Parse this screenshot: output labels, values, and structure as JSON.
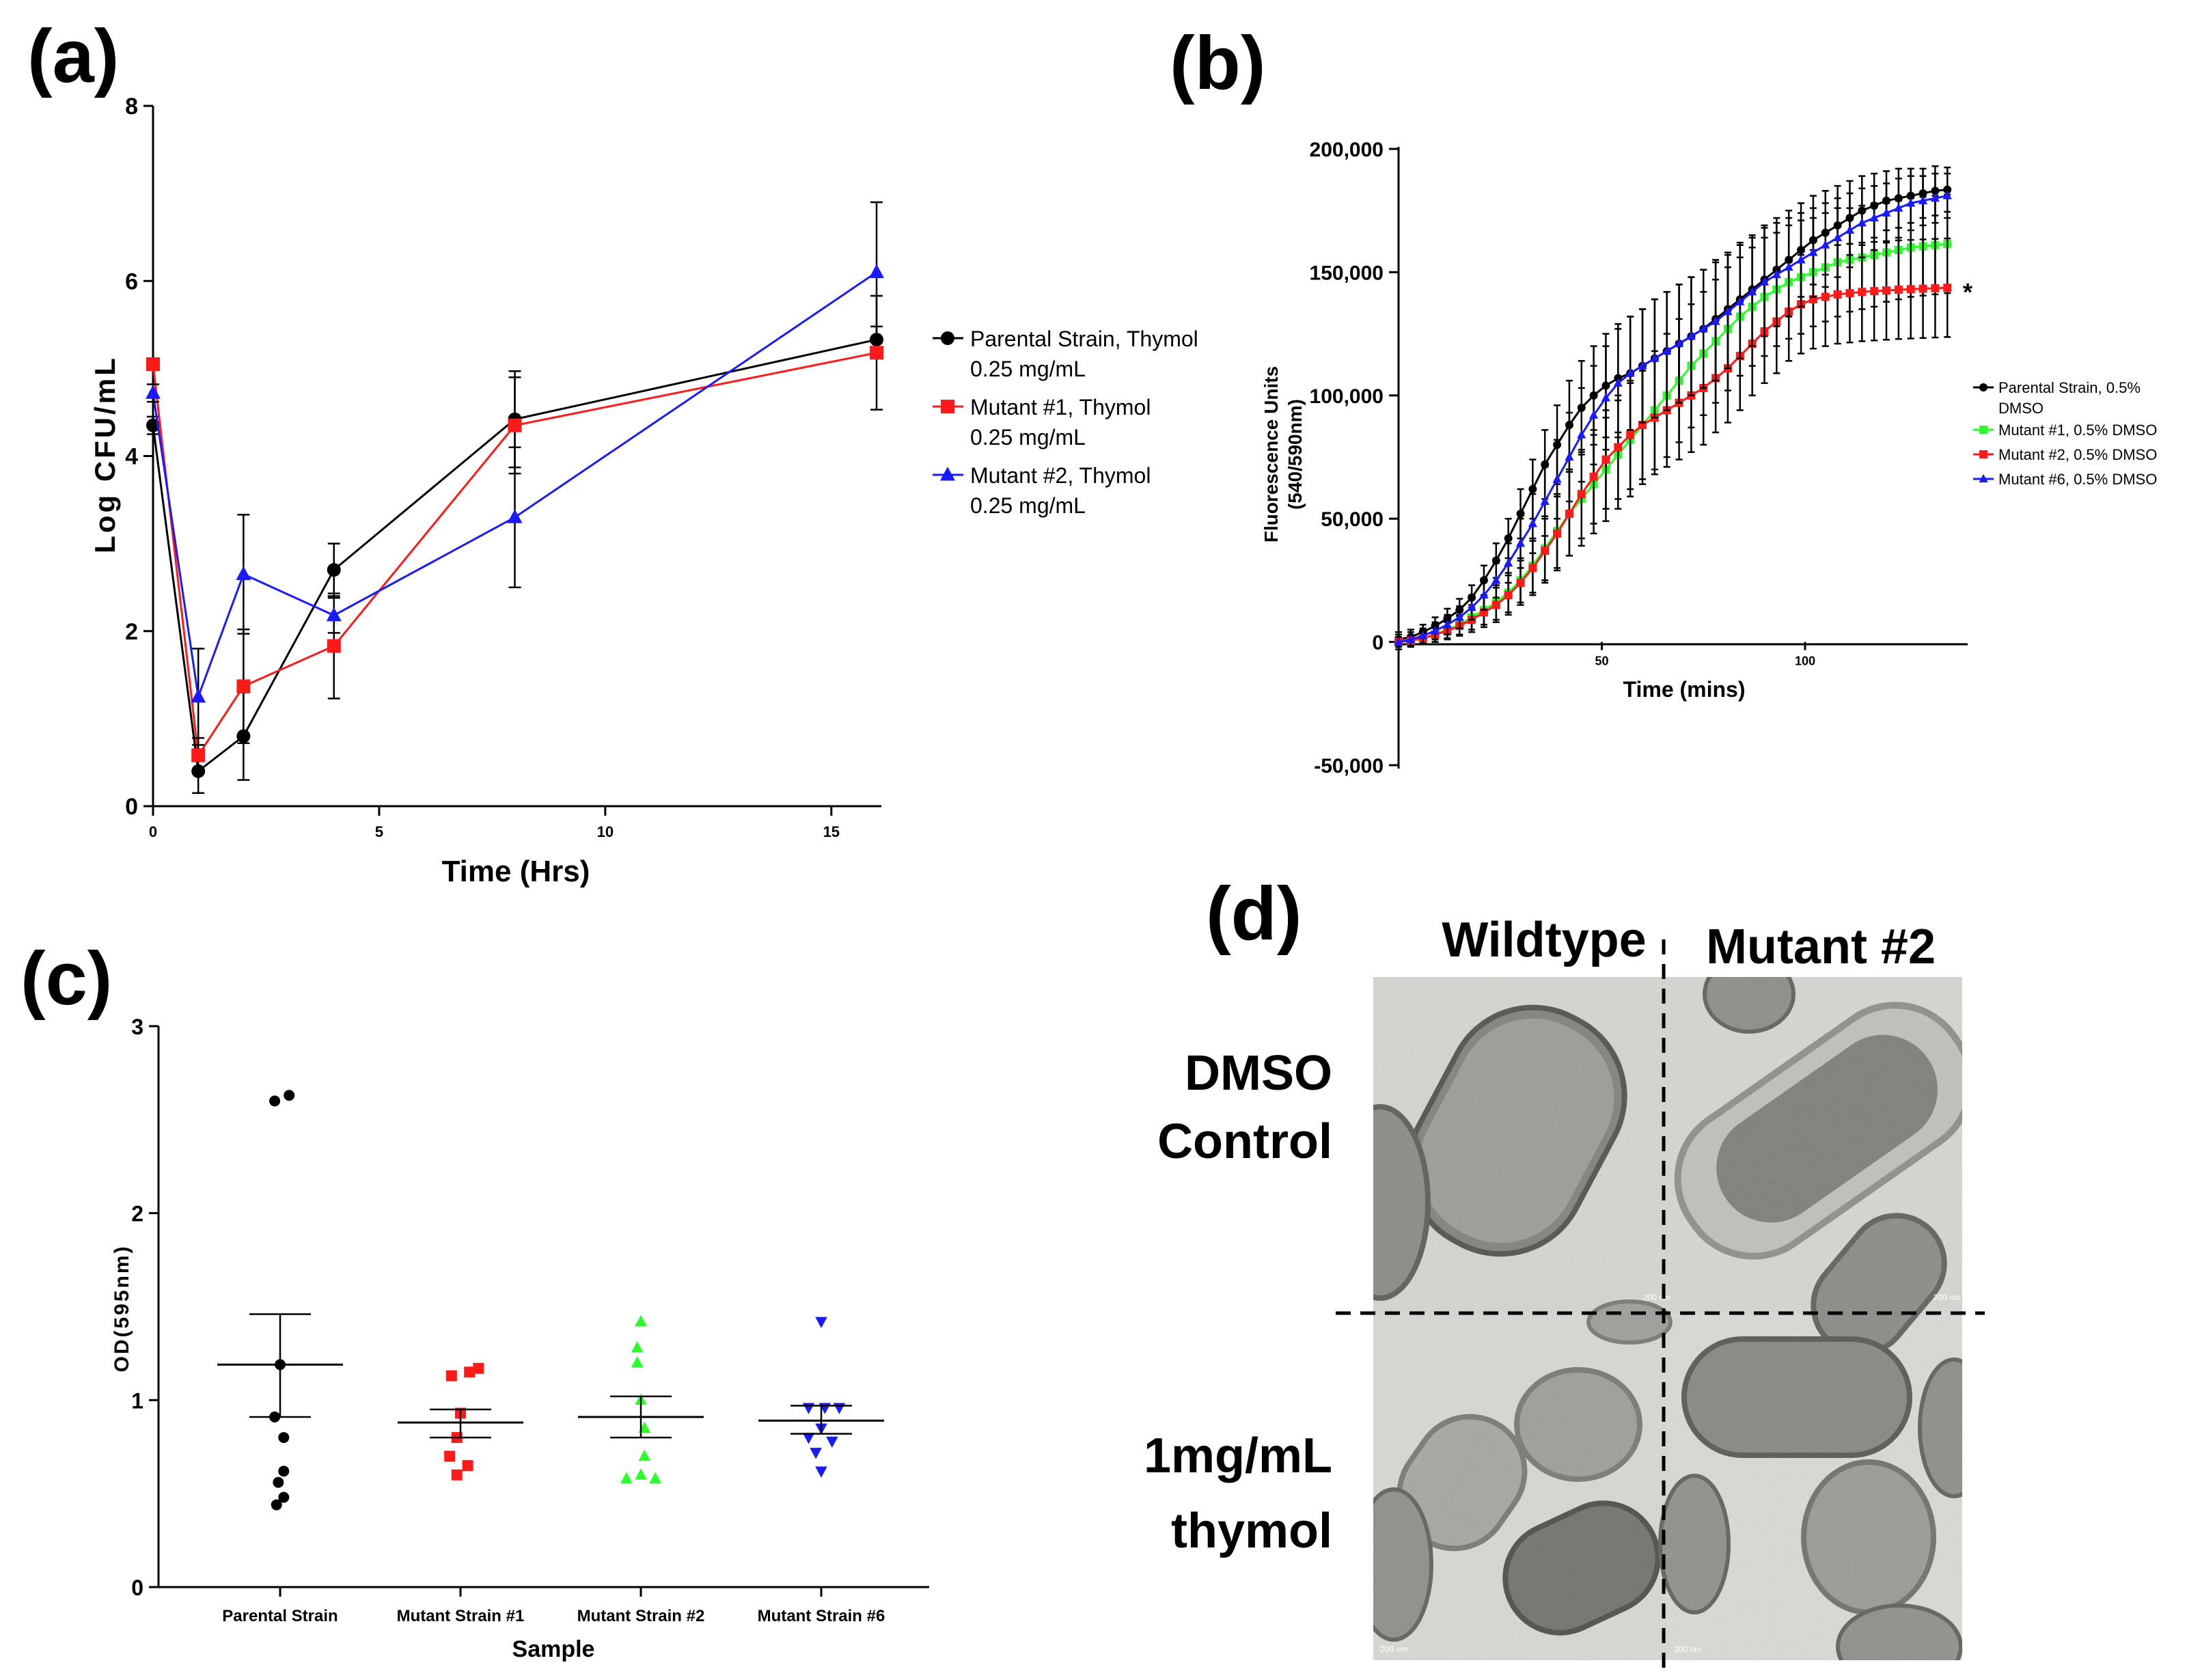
{
  "panel_labels": {
    "a": "(a)",
    "b": "(b)",
    "c": "(c)",
    "d": "(d)"
  },
  "colors": {
    "black": "#000000",
    "red": "#ff1a1a",
    "blue": "#1a1aff",
    "green": "#2aff2a"
  },
  "chart_data": [
    {
      "id": "a",
      "type": "line",
      "xlabel": "Time (Hrs)",
      "ylabel": "Log CFU/mL",
      "xlim": [
        0,
        16
      ],
      "ylim": [
        0,
        8
      ],
      "xticks": [
        0,
        5,
        10,
        15
      ],
      "yticks": [
        0,
        2,
        4,
        6,
        8
      ],
      "legend_position": "right",
      "series": [
        {
          "name": "Parental Strain, Thymol 0.25 mg/mL",
          "legend_lines": [
            "Parental Strain, Thymol",
            "0.25 mg/mL"
          ],
          "color": "black",
          "marker": "circle",
          "x": [
            0,
            1,
            2,
            4,
            8,
            16
          ],
          "y": [
            4.35,
            0.4,
            0.8,
            2.7,
            4.42,
            5.33
          ],
          "err": [
            0.1,
            0.25,
            0.5,
            0.3,
            0.55,
            0.15
          ]
        },
        {
          "name": "Mutant #1, Thymol 0.25 mg/mL",
          "legend_lines": [
            "Mutant #1, Thymol",
            "0.25 mg/mL"
          ],
          "color": "red",
          "marker": "square",
          "x": [
            0,
            1,
            2,
            4,
            8,
            16
          ],
          "y": [
            5.05,
            0.58,
            1.37,
            1.83,
            4.35,
            5.18
          ],
          "err": [
            0.05,
            0.2,
            0.65,
            0.6,
            0.55,
            0.65
          ]
        },
        {
          "name": "Mutant #2, Thymol 0.25 mg/mL",
          "legend_lines": [
            "Mutant #2, Thymol",
            "0.25 mg/mL"
          ],
          "color": "blue",
          "marker": "triangle",
          "x": [
            0,
            1,
            2,
            4,
            8,
            16
          ],
          "y": [
            4.72,
            1.25,
            2.65,
            2.18,
            3.3,
            6.1
          ],
          "err": [
            0.1,
            0.55,
            0.68,
            0.2,
            0.8,
            0.8
          ]
        }
      ]
    },
    {
      "id": "b",
      "type": "line",
      "xlabel": "Time (mins)",
      "ylabel_lines": [
        "Fluorescence Units",
        "(540/590nm)"
      ],
      "xlim": [
        0,
        140
      ],
      "ylim": [
        -50000,
        200000
      ],
      "xticks": [
        50,
        100
      ],
      "yticks": [
        -50000,
        0,
        50000,
        100000,
        150000,
        200000
      ],
      "ytick_labels": [
        "-50,000",
        "0",
        "50,000",
        "100,000",
        "150,000",
        "200,000"
      ],
      "annotation": "*",
      "legend_position": "right",
      "series": [
        {
          "name": "Parental Strain, 0.5% DMSO",
          "legend_lines": [
            "Parental Strain, 0.5%",
            "DMSO"
          ],
          "color": "black",
          "marker": "circle",
          "x": [
            0,
            3,
            6,
            9,
            12,
            15,
            18,
            21,
            24,
            27,
            30,
            33,
            36,
            39,
            42,
            45,
            48,
            51,
            54,
            57,
            60,
            63,
            66,
            69,
            72,
            75,
            78,
            81,
            84,
            87,
            90,
            93,
            96,
            99,
            102,
            105,
            108,
            111,
            114,
            117,
            120,
            123,
            126,
            129,
            132,
            135
          ],
          "y": [
            1000,
            2000,
            4000,
            6500,
            9500,
            13000,
            18000,
            25000,
            33000,
            42000,
            52000,
            62000,
            72000,
            80000,
            88000,
            95000,
            100000,
            104000,
            107000,
            109000,
            112000,
            115000,
            118000,
            121000,
            124000,
            127000,
            131000,
            135000,
            139000,
            143000,
            147000,
            151000,
            155000,
            159000,
            163000,
            166000,
            169000,
            172000,
            175000,
            177000,
            179000,
            180000,
            181000,
            182000,
            183000,
            183500
          ],
          "err": [
            3000,
            3000,
            3000,
            3500,
            4000,
            4500,
            5000,
            6000,
            7000,
            8000,
            10000,
            12000,
            14000,
            16000,
            18000,
            19000,
            20000,
            21000,
            22000,
            23000,
            23000,
            24000,
            24000,
            24000,
            24000,
            24000,
            24000,
            23000,
            23000,
            22000,
            22000,
            21000,
            20000,
            19000,
            18000,
            17000,
            16000,
            15000,
            14000,
            13000,
            12000,
            12000,
            11000,
            10000,
            10000,
            9000
          ]
        },
        {
          "name": "Mutant #1, 0.5% DMSO",
          "legend_lines": [
            "Mutant #1, 0.5% DMSO"
          ],
          "color": "green",
          "marker": "square",
          "x": [
            0,
            3,
            6,
            9,
            12,
            15,
            18,
            21,
            24,
            27,
            30,
            33,
            36,
            39,
            42,
            45,
            48,
            51,
            54,
            57,
            60,
            63,
            66,
            69,
            72,
            75,
            78,
            81,
            84,
            87,
            90,
            93,
            96,
            99,
            102,
            105,
            108,
            111,
            114,
            117,
            120,
            123,
            126,
            129,
            132,
            135
          ],
          "y": [
            0,
            500,
            1500,
            3000,
            5000,
            7000,
            10000,
            13000,
            16000,
            20000,
            25000,
            31000,
            38000,
            45000,
            52000,
            58000,
            64000,
            70000,
            76000,
            82000,
            88000,
            94000,
            100000,
            106000,
            112000,
            117000,
            122000,
            127000,
            132000,
            136000,
            140000,
            143000,
            146000,
            148000,
            150000,
            152000,
            154000,
            155000,
            156000,
            157000,
            158000,
            159000,
            160000,
            160500,
            161000,
            161500
          ],
          "err": [
            2000,
            2000,
            2500,
            3000,
            3500,
            4000,
            5000,
            6000,
            7000,
            8000,
            9000,
            11000,
            13000,
            15000,
            17000,
            19000,
            20000,
            21000,
            22000,
            23000,
            24000,
            24000,
            25000,
            25000,
            25000,
            25000,
            25000,
            25000,
            24000,
            24000,
            24000,
            23000,
            23000,
            23000,
            22000,
            22000,
            22000,
            21000,
            21000,
            21000,
            20000,
            20000,
            20000,
            20000,
            20000,
            20000
          ]
        },
        {
          "name": "Mutant #2, 0.5% DMSO",
          "legend_lines": [
            "Mutant #2, 0.5% DMSO"
          ],
          "color": "red",
          "marker": "square",
          "x": [
            0,
            3,
            6,
            9,
            12,
            15,
            18,
            21,
            24,
            27,
            30,
            33,
            36,
            39,
            42,
            45,
            48,
            51,
            54,
            57,
            60,
            63,
            66,
            69,
            72,
            75,
            78,
            81,
            84,
            87,
            90,
            93,
            96,
            99,
            102,
            105,
            108,
            111,
            114,
            117,
            120,
            123,
            126,
            129,
            132,
            135
          ],
          "y": [
            0,
            500,
            1500,
            3000,
            4500,
            6500,
            9000,
            12000,
            15000,
            19000,
            24000,
            30000,
            37000,
            44000,
            52000,
            60000,
            67000,
            74000,
            79000,
            84000,
            88000,
            91000,
            94000,
            97000,
            100000,
            103000,
            107000,
            111000,
            116000,
            121000,
            126000,
            130000,
            134000,
            137000,
            139000,
            140000,
            141000,
            141500,
            142000,
            142300,
            142600,
            142900,
            143100,
            143300,
            143500,
            143700
          ],
          "err": [
            2000,
            2000,
            2500,
            3000,
            3500,
            4000,
            5000,
            6000,
            7000,
            8000,
            9000,
            11000,
            13000,
            15000,
            17000,
            18000,
            19000,
            20000,
            21000,
            22000,
            22000,
            23000,
            23000,
            23000,
            23000,
            23000,
            22000,
            22000,
            22000,
            21000,
            21000,
            21000,
            20000,
            20000,
            20000,
            20000,
            20000,
            20000,
            20000,
            20000,
            20000,
            20000,
            20000,
            20000,
            20000,
            20000
          ]
        },
        {
          "name": "Mutant #6, 0.5% DMSO",
          "legend_lines": [
            "Mutant #6, 0.5% DMSO"
          ],
          "color": "blue",
          "marker": "triangle",
          "x": [
            0,
            3,
            6,
            9,
            12,
            15,
            18,
            21,
            24,
            27,
            30,
            33,
            36,
            39,
            42,
            45,
            48,
            51,
            54,
            57,
            60,
            63,
            66,
            69,
            72,
            75,
            78,
            81,
            84,
            87,
            90,
            93,
            96,
            99,
            102,
            105,
            108,
            111,
            114,
            117,
            120,
            123,
            126,
            129,
            132,
            135
          ],
          "y": [
            0,
            1000,
            2500,
            4500,
            7000,
            10000,
            14000,
            19000,
            25000,
            32000,
            40000,
            48000,
            57000,
            66000,
            75000,
            84000,
            92000,
            99000,
            105000,
            109000,
            112000,
            115000,
            118000,
            121000,
            124000,
            127000,
            130000,
            134000,
            138000,
            142000,
            146000,
            149000,
            152000,
            155000,
            158000,
            161000,
            164000,
            167000,
            170000,
            172000,
            174000,
            176000,
            178000,
            179000,
            180000,
            181000
          ],
          "err": [
            3000,
            3000,
            3000,
            3500,
            4000,
            4500,
            5000,
            6000,
            7000,
            8000,
            10000,
            12000,
            14000,
            16000,
            18000,
            19000,
            20000,
            21000,
            22000,
            23000,
            23000,
            24000,
            24000,
            24000,
            24000,
            24000,
            24000,
            23000,
            23000,
            22000,
            22000,
            21000,
            20000,
            19000,
            18000,
            17000,
            16000,
            15000,
            14000,
            13000,
            12000,
            12000,
            11000,
            10000,
            10000,
            9000
          ]
        }
      ]
    },
    {
      "id": "c",
      "type": "scatter",
      "xlabel": "Sample",
      "ylabel": "OD(595nm)",
      "ylim": [
        0,
        3
      ],
      "yticks": [
        0,
        1,
        2,
        3
      ],
      "categories": [
        "Parental Strain",
        "Mutant Strain #1",
        "Mutant Strain #2",
        "Mutant Strain #6"
      ],
      "groups": [
        {
          "category": "Parental Strain",
          "color": "black",
          "marker": "circle",
          "mean": 1.19,
          "upper": 1.46,
          "lower": 0.91,
          "points": [
            [
              -0.03,
              2.6
            ],
            [
              0.05,
              2.63
            ],
            [
              0.0,
              1.19
            ],
            [
              -0.03,
              0.91
            ],
            [
              0.02,
              0.8
            ],
            [
              0.02,
              0.62
            ],
            [
              -0.01,
              0.56
            ],
            [
              0.02,
              0.48
            ],
            [
              -0.02,
              0.44
            ]
          ]
        },
        {
          "category": "Mutant Strain #1",
          "color": "red",
          "marker": "square",
          "mean": 0.88,
          "upper": 0.95,
          "lower": 0.8,
          "points": [
            [
              -0.05,
              1.13
            ],
            [
              0.05,
              1.15
            ],
            [
              0.1,
              1.17
            ],
            [
              0.0,
              0.93
            ],
            [
              -0.02,
              0.8
            ],
            [
              -0.06,
              0.7
            ],
            [
              0.04,
              0.65
            ],
            [
              -0.02,
              0.6
            ]
          ]
        },
        {
          "category": "Mutant Strain #2",
          "color": "green",
          "marker": "triangle",
          "mean": 0.91,
          "upper": 1.02,
          "lower": 0.8,
          "points": [
            [
              0.0,
              1.42
            ],
            [
              -0.02,
              1.28
            ],
            [
              -0.02,
              1.2
            ],
            [
              0.0,
              1.0
            ],
            [
              0.02,
              0.85
            ],
            [
              0.02,
              0.7
            ],
            [
              -0.08,
              0.58
            ],
            [
              0.08,
              0.58
            ],
            [
              0.0,
              0.6
            ]
          ]
        },
        {
          "category": "Mutant Strain #6",
          "color": "blue",
          "marker": "triangle-down",
          "mean": 0.89,
          "upper": 0.97,
          "lower": 0.82,
          "points": [
            [
              0.0,
              1.42
            ],
            [
              -0.07,
              0.96
            ],
            [
              0.02,
              0.96
            ],
            [
              0.1,
              0.96
            ],
            [
              0.0,
              0.85
            ],
            [
              -0.07,
              0.8
            ],
            [
              0.06,
              0.78
            ],
            [
              -0.03,
              0.72
            ],
            [
              0.0,
              0.62
            ]
          ]
        }
      ]
    }
  ],
  "panel_d": {
    "column_headers": [
      "Wildtype",
      "Mutant #2"
    ],
    "row_labels": [
      [
        "DMSO",
        "Control"
      ],
      [
        "1mg/mL",
        "thymol"
      ]
    ],
    "scale_bar": "200 nm"
  }
}
